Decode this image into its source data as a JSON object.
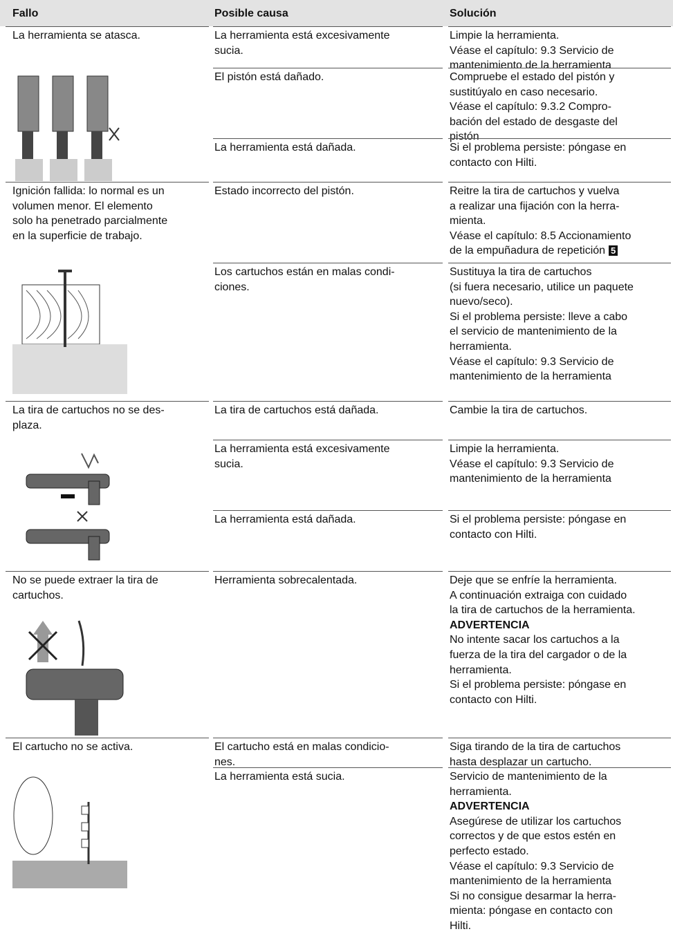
{
  "table": {
    "header": [
      "Fallo",
      "Posible causa",
      "Solución"
    ],
    "groups": [
      {
        "fallo": [
          "La herramienta se atasca."
        ],
        "causes": [
          {
            "cause": [
              "La herramienta está excesivamente",
              "sucia."
            ],
            "solution": [
              "Limpie la herramienta.",
              "Véase el capítulo: 9.3 Servicio de",
              "mantenimiento de la herramienta"
            ]
          },
          {
            "cause": [
              "El pistón está dañado."
            ],
            "solution": [
              "Compruebe el estado del pistón y",
              "sustitúyalo en caso necesario.",
              "Véase el capítulo: 9.3.2 Compro-",
              "bación del estado de desgaste del",
              "pistón"
            ]
          },
          {
            "cause": [
              "La herramienta está dañada."
            ],
            "solution": [
              "Si el problema persiste: póngase en",
              "contacto con Hilti."
            ]
          }
        ]
      },
      {
        "fallo": [
          "Ignición fallida: lo normal es un",
          "volumen menor. El elemento",
          "solo ha penetrado parcialmente",
          "en la superficie de trabajo."
        ],
        "causes": [
          {
            "cause": [
              "Estado incorrecto del pistón."
            ],
            "solution": [
              "Reitre la tira de cartuchos y vuelva",
              "a realizar una fijación con la herra-",
              "mienta.",
              "Véase el capítulo: 8.5 Accionamiento",
              {
                "text": "de la empuñadura de repetición",
                "badge": "5"
              }
            ]
          },
          {
            "cause": [
              "Los cartuchos están en malas condi-",
              "ciones."
            ],
            "solution": [
              "Sustituya la tira de cartuchos",
              "(si fuera necesario, utilice un paquete",
              "nuevo/seco).",
              "Si el problema persiste: lleve a cabo",
              "el servicio de mantenimiento de la",
              "herramienta.",
              "Véase el capítulo: 9.3 Servicio de",
              "mantenimiento de la herramienta"
            ]
          }
        ]
      },
      {
        "fallo": [
          "La tira de cartuchos no se des-",
          "plaza."
        ],
        "causes": [
          {
            "cause": [
              "La tira de cartuchos está dañada."
            ],
            "solution": [
              "Cambie la tira de cartuchos."
            ]
          },
          {
            "cause": [
              "La herramienta está excesivamente",
              "sucia."
            ],
            "solution": [
              "Limpie la herramienta.",
              "Véase el capítulo: 9.3 Servicio de",
              "mantenimiento de la herramienta"
            ]
          },
          {
            "cause": [
              "La herramienta está dañada."
            ],
            "solution": [
              "Si el problema persiste: póngase en",
              "contacto con Hilti."
            ]
          }
        ]
      },
      {
        "fallo": [
          "No se puede extraer la tira de",
          "cartuchos."
        ],
        "causes": [
          {
            "cause": [
              "Herramienta sobrecalentada."
            ],
            "solution": [
              "Deje que se enfríe la herramienta.",
              "A continuación extraiga con cuidado",
              "la tira de cartuchos de la herramienta.",
              {
                "strong": "ADVERTENCIA"
              },
              "No intente sacar los cartuchos a la",
              "fuerza de la tira del cargador o de la",
              "herramienta.",
              "Si el problema persiste: póngase en",
              "contacto con Hilti."
            ]
          }
        ]
      },
      {
        "fallo": [
          "El cartucho no se activa."
        ],
        "causes": [
          {
            "cause": [
              "El cartucho está en malas condicio-",
              "nes."
            ],
            "solution": [
              "Siga tirando de la tira de cartuchos",
              "hasta desplazar un cartucho."
            ]
          },
          {
            "cause": [
              "La herramienta está sucia."
            ],
            "solution": [
              "Servicio de mantenimiento de la",
              "herramienta.",
              {
                "strong": "ADVERTENCIA"
              },
              "Asegúrese de utilizar los cartuchos",
              "correctos y de que estos estén en",
              "perfecto estado.",
              "Véase el capítulo: 9.3 Servicio de",
              "mantenimiento de la herramienta",
              "Si no consigue desarmar la herra-",
              "mienta: póngase en contacto con",
              "Hilti."
            ]
          }
        ]
      }
    ]
  }
}
